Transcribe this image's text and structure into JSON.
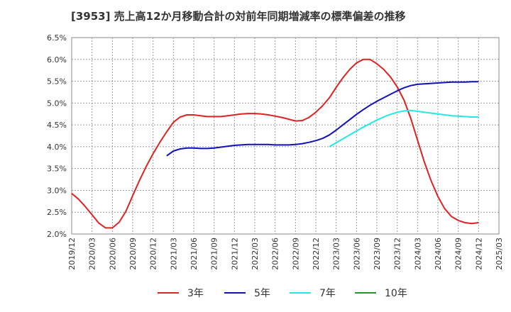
{
  "chart_data": {
    "type": "line",
    "title": "[3953]  売上高12か月移動合計の対前年同期増減率の標準偏差の推移",
    "xlabel": "",
    "ylabel": "",
    "y_ticks": [
      "6.5%",
      "6.0%",
      "5.5%",
      "5.0%",
      "4.5%",
      "4.0%",
      "3.5%",
      "3.0%",
      "2.5%",
      "2.0%"
    ],
    "ylim": [
      2.0,
      6.5
    ],
    "x_ticks": [
      "2019/12",
      "2020/03",
      "2020/06",
      "2020/09",
      "2020/12",
      "2021/03",
      "2021/06",
      "2021/09",
      "2021/12",
      "2022/03",
      "2022/06",
      "2022/09",
      "2022/12",
      "2023/03",
      "2023/06",
      "2023/09",
      "2023/12",
      "2024/03",
      "2024/06",
      "2024/09",
      "2024/12",
      "2025/03"
    ],
    "x_range": [
      "2019/12",
      "2025/03"
    ],
    "grid": true,
    "legend_position": "bottom",
    "series": [
      {
        "name": "3年",
        "color": "#dd2222",
        "points": [
          [
            "2019/12",
            2.93
          ],
          [
            "2020/01",
            2.8
          ],
          [
            "2020/02",
            2.63
          ],
          [
            "2020/03",
            2.44
          ],
          [
            "2020/04",
            2.25
          ],
          [
            "2020/05",
            2.14
          ],
          [
            "2020/06",
            2.14
          ],
          [
            "2020/07",
            2.27
          ],
          [
            "2020/08",
            2.52
          ],
          [
            "2020/09",
            2.88
          ],
          [
            "2020/10",
            3.23
          ],
          [
            "2020/11",
            3.55
          ],
          [
            "2020/12",
            3.84
          ],
          [
            "2021/01",
            4.1
          ],
          [
            "2021/02",
            4.34
          ],
          [
            "2021/03",
            4.56
          ],
          [
            "2021/04",
            4.68
          ],
          [
            "2021/05",
            4.73
          ],
          [
            "2021/06",
            4.73
          ],
          [
            "2021/07",
            4.71
          ],
          [
            "2021/08",
            4.69
          ],
          [
            "2021/09",
            4.69
          ],
          [
            "2021/10",
            4.69
          ],
          [
            "2021/11",
            4.71
          ],
          [
            "2021/12",
            4.73
          ],
          [
            "2022/01",
            4.75
          ],
          [
            "2022/02",
            4.76
          ],
          [
            "2022/03",
            4.76
          ],
          [
            "2022/04",
            4.75
          ],
          [
            "2022/05",
            4.73
          ],
          [
            "2022/06",
            4.7
          ],
          [
            "2022/07",
            4.67
          ],
          [
            "2022/08",
            4.63
          ],
          [
            "2022/09",
            4.59
          ],
          [
            "2022/10",
            4.6
          ],
          [
            "2022/11",
            4.67
          ],
          [
            "2022/12",
            4.79
          ],
          [
            "2023/01",
            4.94
          ],
          [
            "2023/02",
            5.12
          ],
          [
            "2023/03",
            5.36
          ],
          [
            "2023/04",
            5.58
          ],
          [
            "2023/05",
            5.77
          ],
          [
            "2023/06",
            5.92
          ],
          [
            "2023/07",
            6.0
          ],
          [
            "2023/08",
            6.0
          ],
          [
            "2023/09",
            5.9
          ],
          [
            "2023/10",
            5.77
          ],
          [
            "2023/11",
            5.6
          ],
          [
            "2023/12",
            5.37
          ],
          [
            "2024/01",
            5.07
          ],
          [
            "2024/02",
            4.65
          ],
          [
            "2024/03",
            4.15
          ],
          [
            "2024/04",
            3.65
          ],
          [
            "2024/05",
            3.22
          ],
          [
            "2024/06",
            2.86
          ],
          [
            "2024/07",
            2.58
          ],
          [
            "2024/08",
            2.4
          ],
          [
            "2024/09",
            2.31
          ],
          [
            "2024/10",
            2.26
          ],
          [
            "2024/11",
            2.24
          ],
          [
            "2024/12",
            2.26
          ]
        ]
      },
      {
        "name": "5年",
        "color": "#1111bb",
        "points": [
          [
            "2021/02",
            3.79
          ],
          [
            "2021/03",
            3.9
          ],
          [
            "2021/04",
            3.95
          ],
          [
            "2021/05",
            3.97
          ],
          [
            "2021/06",
            3.97
          ],
          [
            "2021/07",
            3.96
          ],
          [
            "2021/08",
            3.96
          ],
          [
            "2021/09",
            3.97
          ],
          [
            "2021/10",
            3.99
          ],
          [
            "2021/11",
            4.01
          ],
          [
            "2021/12",
            4.03
          ],
          [
            "2022/01",
            4.04
          ],
          [
            "2022/02",
            4.05
          ],
          [
            "2022/03",
            4.05
          ],
          [
            "2022/04",
            4.05
          ],
          [
            "2022/05",
            4.05
          ],
          [
            "2022/06",
            4.04
          ],
          [
            "2022/07",
            4.04
          ],
          [
            "2022/08",
            4.04
          ],
          [
            "2022/09",
            4.05
          ],
          [
            "2022/10",
            4.07
          ],
          [
            "2022/11",
            4.1
          ],
          [
            "2022/12",
            4.14
          ],
          [
            "2023/01",
            4.19
          ],
          [
            "2023/02",
            4.27
          ],
          [
            "2023/03",
            4.38
          ],
          [
            "2023/04",
            4.5
          ],
          [
            "2023/05",
            4.62
          ],
          [
            "2023/06",
            4.74
          ],
          [
            "2023/07",
            4.85
          ],
          [
            "2023/08",
            4.95
          ],
          [
            "2023/09",
            5.04
          ],
          [
            "2023/10",
            5.12
          ],
          [
            "2023/11",
            5.2
          ],
          [
            "2023/12",
            5.28
          ],
          [
            "2024/01",
            5.35
          ],
          [
            "2024/02",
            5.4
          ],
          [
            "2024/03",
            5.43
          ],
          [
            "2024/04",
            5.44
          ],
          [
            "2024/05",
            5.45
          ],
          [
            "2024/06",
            5.46
          ],
          [
            "2024/07",
            5.47
          ],
          [
            "2024/08",
            5.48
          ],
          [
            "2024/09",
            5.48
          ],
          [
            "2024/10",
            5.48
          ],
          [
            "2024/11",
            5.49
          ],
          [
            "2024/12",
            5.49
          ]
        ]
      },
      {
        "name": "7年",
        "color": "#22e8e8",
        "points": [
          [
            "2023/02",
            4.0
          ],
          [
            "2023/03",
            4.09
          ],
          [
            "2023/04",
            4.18
          ],
          [
            "2023/05",
            4.27
          ],
          [
            "2023/06",
            4.36
          ],
          [
            "2023/07",
            4.45
          ],
          [
            "2023/08",
            4.53
          ],
          [
            "2023/09",
            4.61
          ],
          [
            "2023/10",
            4.68
          ],
          [
            "2023/11",
            4.74
          ],
          [
            "2023/12",
            4.79
          ],
          [
            "2024/01",
            4.82
          ],
          [
            "2024/02",
            4.83
          ],
          [
            "2024/03",
            4.81
          ],
          [
            "2024/04",
            4.79
          ],
          [
            "2024/05",
            4.77
          ],
          [
            "2024/06",
            4.75
          ],
          [
            "2024/07",
            4.73
          ],
          [
            "2024/08",
            4.71
          ],
          [
            "2024/09",
            4.7
          ],
          [
            "2024/10",
            4.69
          ],
          [
            "2024/11",
            4.68
          ],
          [
            "2024/12",
            4.68
          ]
        ]
      },
      {
        "name": "10年",
        "color": "#229922",
        "points": []
      }
    ]
  }
}
